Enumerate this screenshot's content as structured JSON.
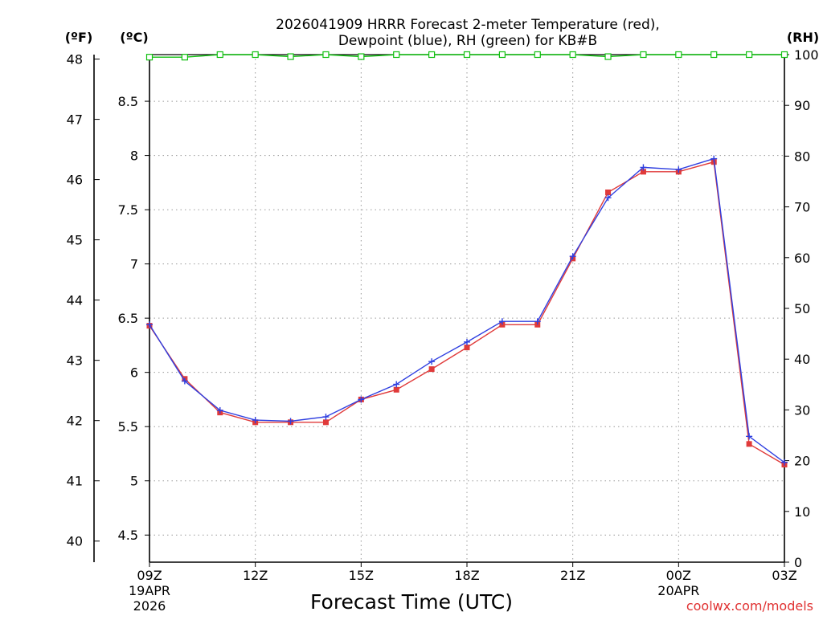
{
  "chart_data": {
    "type": "line",
    "title_line1": "2026041909 HRRR Forecast 2-meter Temperature (red),",
    "title_line2": "Dewpoint (blue), RH (green) for KB#B",
    "xlabel": "Forecast Time (UTC)",
    "credit": "coolwx.com/models",
    "unit_labels": {
      "fahrenheit": "(ºF)",
      "celsius": "(ºC)",
      "rh": "(RH)"
    },
    "x_hours": [
      0,
      1,
      2,
      3,
      4,
      5,
      6,
      7,
      8,
      9,
      10,
      11,
      12,
      13,
      14,
      15,
      16,
      17,
      18
    ],
    "xlim": [
      0,
      18
    ],
    "x_ticks": [
      {
        "hour": 0,
        "label": "09Z",
        "sub1": "19APR",
        "sub2": "2026"
      },
      {
        "hour": 3,
        "label": "12Z",
        "sub1": "",
        "sub2": ""
      },
      {
        "hour": 6,
        "label": "15Z",
        "sub1": "",
        "sub2": ""
      },
      {
        "hour": 9,
        "label": "18Z",
        "sub1": "",
        "sub2": ""
      },
      {
        "hour": 12,
        "label": "21Z",
        "sub1": "",
        "sub2": ""
      },
      {
        "hour": 15,
        "label": "00Z",
        "sub1": "20APR",
        "sub2": ""
      },
      {
        "hour": 18,
        "label": "03Z",
        "sub1": "",
        "sub2": ""
      }
    ],
    "celsius_axis": {
      "ylim": [
        4.25,
        8.93
      ],
      "ticks": [
        "4.5",
        "5",
        "5.5",
        "6",
        "6.5",
        "7",
        "7.5",
        "8",
        "8.5"
      ]
    },
    "fahrenheit_axis": {
      "ticks": [
        "40",
        "41",
        "42",
        "43",
        "44",
        "45",
        "46",
        "47",
        "48"
      ]
    },
    "rh_axis": {
      "ylim": [
        0,
        100
      ],
      "ticks": [
        "0",
        "10",
        "20",
        "30",
        "40",
        "50",
        "60",
        "70",
        "80",
        "90",
        "100"
      ]
    },
    "series": [
      {
        "name": "Temperature",
        "unit": "C",
        "color": "#e03a3a",
        "values": [
          6.43,
          5.94,
          5.63,
          5.54,
          5.54,
          5.54,
          5.75,
          5.84,
          6.03,
          6.23,
          6.44,
          6.44,
          7.05,
          7.66,
          7.85,
          7.85,
          7.94,
          5.34,
          5.15
        ]
      },
      {
        "name": "Dewpoint",
        "unit": "C",
        "color": "#2f3fe0",
        "values": [
          6.44,
          5.92,
          5.65,
          5.56,
          5.55,
          5.59,
          5.75,
          5.89,
          6.1,
          6.28,
          6.47,
          6.47,
          7.07,
          7.61,
          7.89,
          7.87,
          7.97,
          5.41,
          5.17
        ]
      },
      {
        "name": "RH",
        "unit": "%",
        "color": "#10c010",
        "values": [
          99.5,
          99.5,
          100,
          100,
          99.6,
          100,
          99.6,
          100,
          100,
          100,
          100,
          100,
          100,
          99.6,
          100,
          100,
          100,
          100,
          100
        ]
      }
    ]
  }
}
